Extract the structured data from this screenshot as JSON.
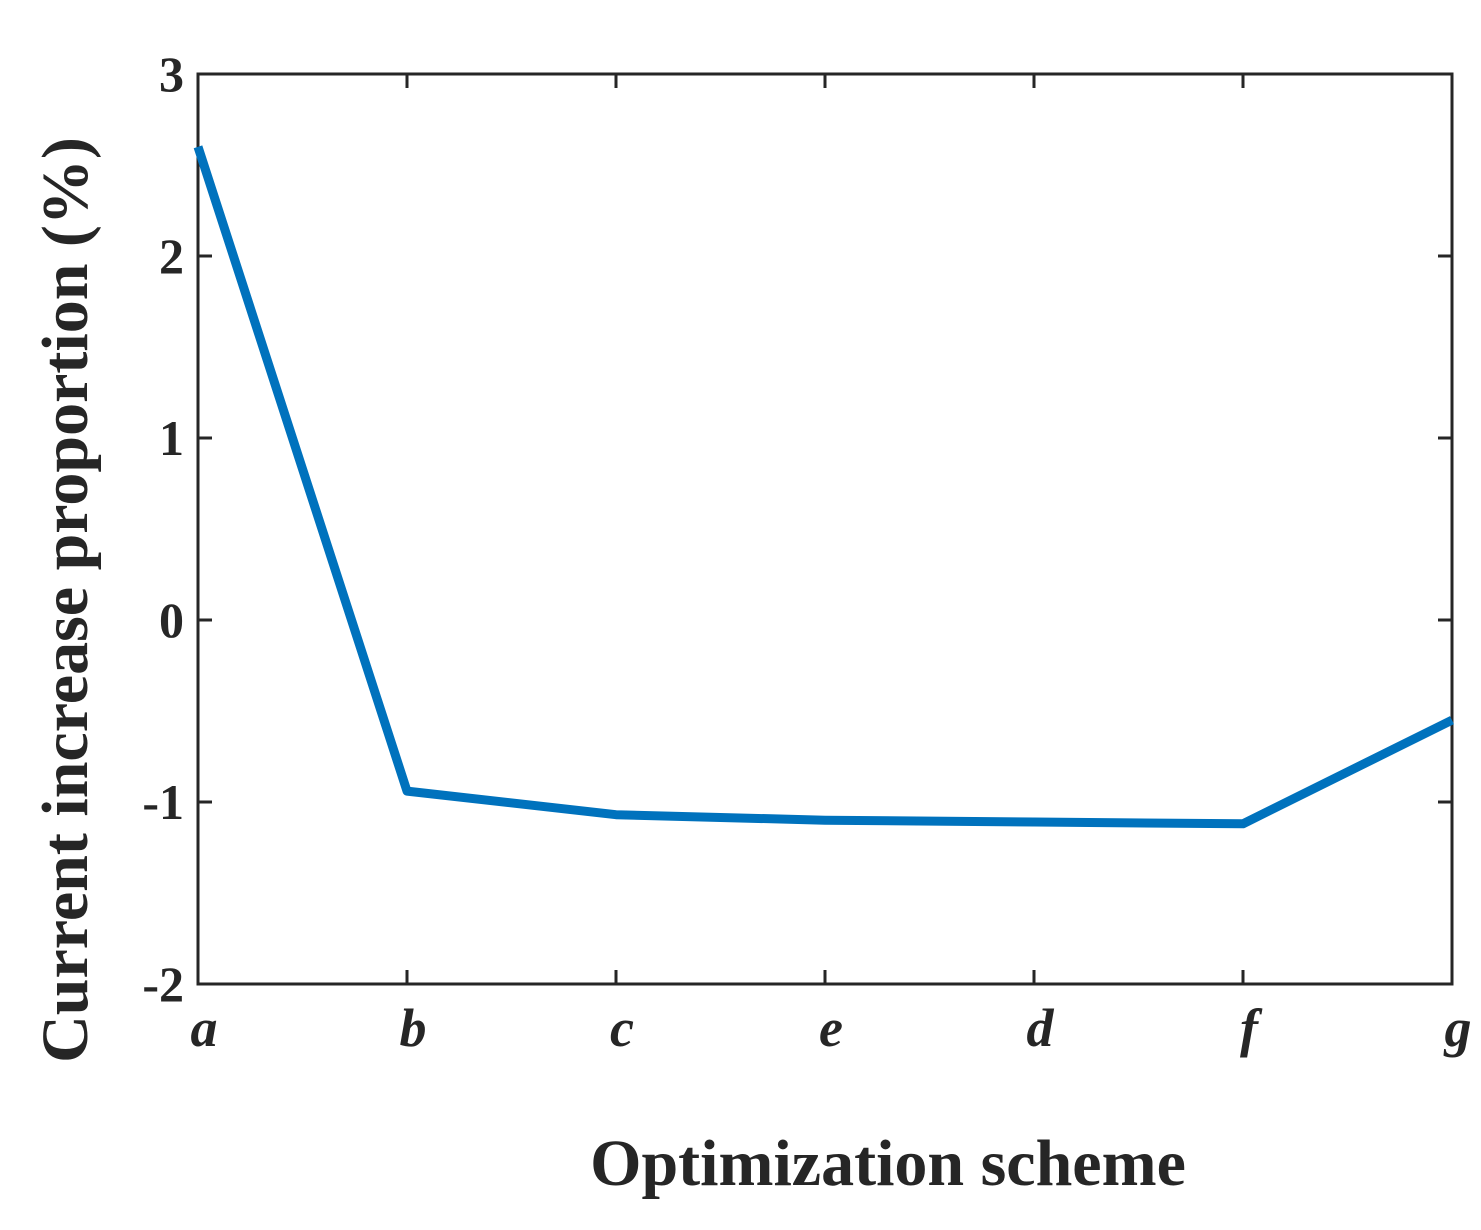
{
  "chart_data": {
    "type": "line",
    "title": "",
    "xlabel": "Optimization scheme",
    "ylabel": "Current increase proportion (%)",
    "categories": [
      "a",
      "b",
      "c",
      "e",
      "d",
      "f",
      "g"
    ],
    "series": [
      {
        "values": [
          2.6,
          -0.94,
          -1.07,
          -1.1,
          -1.11,
          -1.12,
          -0.55
        ],
        "color": "#0072BD"
      }
    ],
    "ylim": [
      -2,
      3
    ],
    "yticks": [
      -2,
      -1,
      0,
      1,
      2,
      3
    ],
    "ytick_labels": [
      "-2",
      "-1",
      "0",
      "1",
      "2",
      "3"
    ],
    "grid": false,
    "legend": "none",
    "axis_color": "#262626"
  }
}
